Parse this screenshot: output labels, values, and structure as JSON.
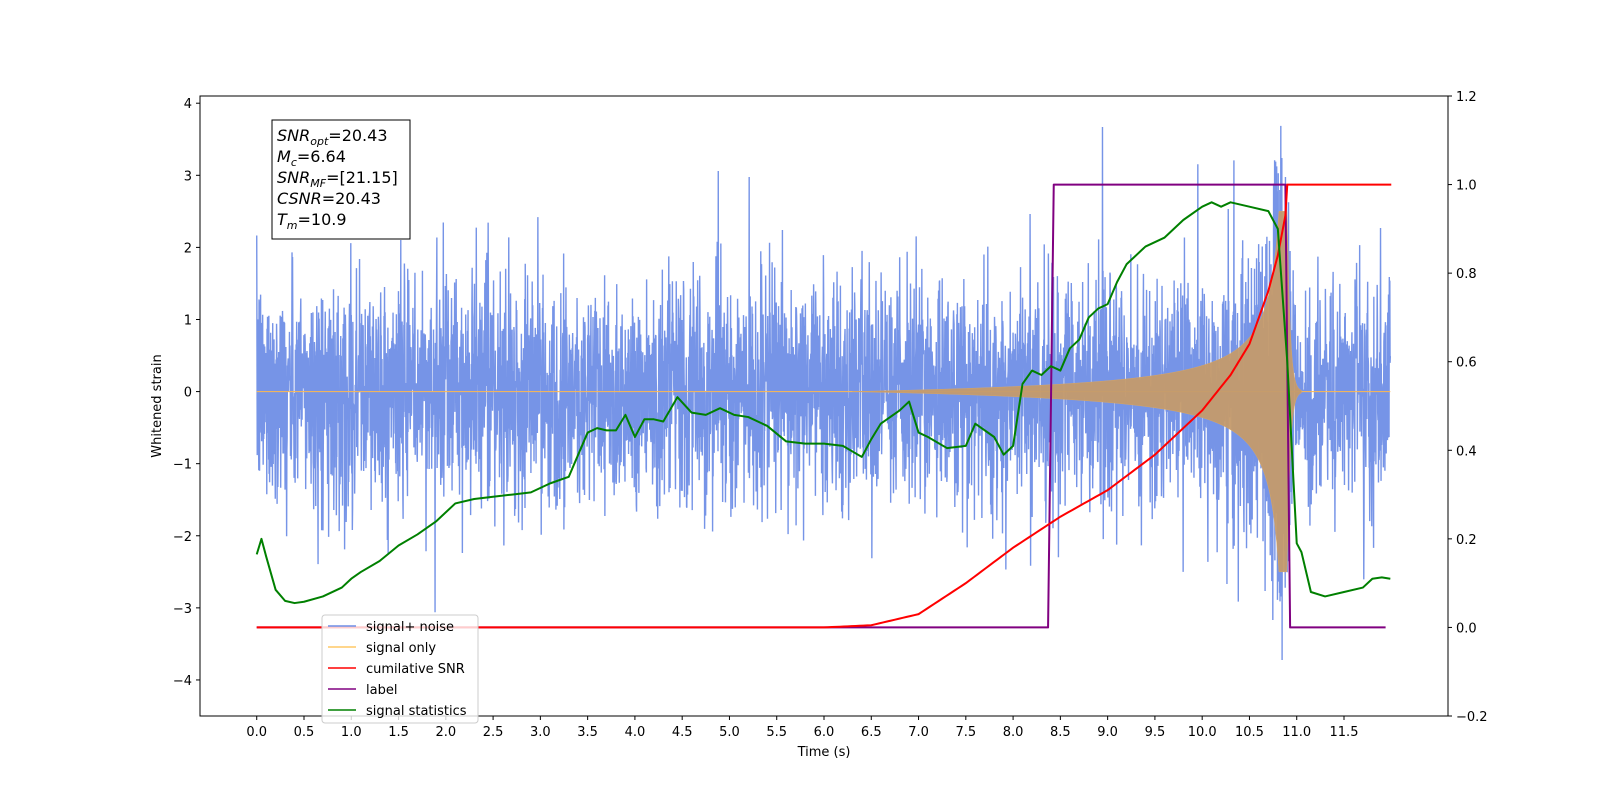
{
  "chart_data": {
    "type": "line",
    "xlabel": "Time (s)",
    "ylabel": "Whitened strain",
    "xlim": [
      -0.6,
      12.6
    ],
    "ylim": [
      -4.5,
      4.1
    ],
    "y2lim": [
      -0.2,
      1.2
    ],
    "x_ticks": [
      0.0,
      0.5,
      1.0,
      1.5,
      2.0,
      2.5,
      3.0,
      3.5,
      4.0,
      4.5,
      5.0,
      5.5,
      6.0,
      6.5,
      7.0,
      7.5,
      8.0,
      8.5,
      9.0,
      9.5,
      10.0,
      10.5,
      11.0,
      11.5
    ],
    "x_tick_labels": [
      "0.0",
      "0.5",
      "1.0",
      "1.5",
      "2.0",
      "2.5",
      "3.0",
      "3.5",
      "4.0",
      "4.5",
      "5.0",
      "5.5",
      "6.0",
      "6.5",
      "7.0",
      "7.5",
      "8.0",
      "8.5",
      "9.0",
      "9.5",
      "10.0",
      "10.5",
      "11.0",
      "11.5"
    ],
    "y_ticks": [
      4,
      3,
      2,
      1,
      0,
      -1,
      -2,
      -3,
      -4
    ],
    "y_tick_labels": [
      "4",
      "3",
      "2",
      "1",
      "0",
      "−1",
      "−2",
      "−3",
      "−4"
    ],
    "y2_ticks": [
      1.2,
      1.0,
      0.8,
      0.6,
      0.4,
      0.2,
      0.0,
      -0.2
    ],
    "y2_tick_labels": [
      "1.2",
      "1.0",
      "0.8",
      "0.6",
      "0.4",
      "0.2",
      "0.0",
      "−0.2"
    ],
    "grid": false,
    "legend_position": "lower-left",
    "info_box": [
      {
        "main": "SNR",
        "sub": "opt",
        "rest": "=20.43"
      },
      {
        "main": "M",
        "sub": "c",
        "rest": "=6.64"
      },
      {
        "main": "SNR",
        "sub": "MF",
        "rest": "=[21.15]"
      },
      {
        "main": "CSNR",
        "sub": "",
        "rest": "=20.43"
      },
      {
        "main": "T",
        "sub": "m",
        "rest": "=10.9"
      }
    ],
    "series": [
      {
        "name": "signal+ noise",
        "color": "#6f8ee6",
        "axis": "left",
        "description_points": {
          "x_range": [
            0.0,
            11.99
          ],
          "typical_amplitude": 1.3,
          "peak_max": 3.7,
          "peak_min": -4.1
        }
      },
      {
        "name": "signal only",
        "color": "#ffb84d",
        "axis": "left",
        "chirp": {
          "start": 6.3,
          "merger": 10.9,
          "peak_amplitude": 2.5,
          "ringdown_end": 11.05
        }
      },
      {
        "name": "cumilative SNR",
        "color": "#ff0000",
        "axis": "right",
        "x": [
          0.0,
          6.0,
          6.5,
          7.0,
          7.5,
          8.0,
          8.5,
          9.0,
          9.5,
          10.0,
          10.3,
          10.5,
          10.7,
          10.8,
          10.88,
          10.9,
          12.0
        ],
        "y": [
          0.0,
          0.0,
          0.005,
          0.03,
          0.1,
          0.18,
          0.25,
          0.31,
          0.39,
          0.49,
          0.57,
          0.64,
          0.76,
          0.84,
          0.93,
          1.0,
          1.0
        ]
      },
      {
        "name": "label",
        "color": "#800080",
        "axis": "right",
        "x": [
          0.0,
          8.37,
          8.43,
          10.88,
          10.93,
          11.94
        ],
        "y": [
          0.0,
          0.0,
          1.0,
          1.0,
          0.0,
          0.0
        ]
      },
      {
        "name": "signal statistics",
        "color": "#008000",
        "axis": "right",
        "x": [
          0.0,
          0.05,
          0.1,
          0.2,
          0.3,
          0.4,
          0.5,
          0.7,
          0.9,
          1.0,
          1.1,
          1.3,
          1.5,
          1.7,
          1.9,
          2.1,
          2.3,
          2.5,
          2.7,
          2.9,
          3.1,
          3.3,
          3.5,
          3.6,
          3.7,
          3.8,
          3.9,
          4.0,
          4.1,
          4.2,
          4.3,
          4.45,
          4.6,
          4.75,
          4.9,
          5.05,
          5.2,
          5.4,
          5.6,
          5.8,
          6.0,
          6.2,
          6.4,
          6.5,
          6.6,
          6.8,
          6.9,
          7.0,
          7.1,
          7.3,
          7.5,
          7.6,
          7.8,
          7.9,
          8.0,
          8.1,
          8.2,
          8.3,
          8.4,
          8.5,
          8.6,
          8.7,
          8.8,
          8.9,
          9.0,
          9.1,
          9.2,
          9.4,
          9.6,
          9.8,
          10.0,
          10.1,
          10.2,
          10.3,
          10.5,
          10.7,
          10.8,
          10.9,
          11.0,
          11.05,
          11.15,
          11.3,
          11.5,
          11.7,
          11.8,
          11.9,
          11.99
        ],
        "y": [
          0.165,
          0.2,
          0.16,
          0.085,
          0.06,
          0.055,
          0.058,
          0.07,
          0.09,
          0.11,
          0.125,
          0.15,
          0.185,
          0.21,
          0.24,
          0.28,
          0.29,
          0.295,
          0.3,
          0.305,
          0.325,
          0.34,
          0.44,
          0.45,
          0.445,
          0.445,
          0.48,
          0.43,
          0.47,
          0.47,
          0.465,
          0.52,
          0.485,
          0.48,
          0.495,
          0.48,
          0.475,
          0.455,
          0.42,
          0.415,
          0.415,
          0.41,
          0.385,
          0.425,
          0.46,
          0.49,
          0.51,
          0.44,
          0.43,
          0.405,
          0.41,
          0.46,
          0.43,
          0.39,
          0.41,
          0.55,
          0.58,
          0.57,
          0.59,
          0.58,
          0.63,
          0.65,
          0.7,
          0.72,
          0.73,
          0.78,
          0.82,
          0.86,
          0.88,
          0.92,
          0.95,
          0.96,
          0.95,
          0.96,
          0.95,
          0.94,
          0.9,
          0.6,
          0.19,
          0.17,
          0.08,
          0.07,
          0.08,
          0.09,
          0.11,
          0.113,
          0.11
        ]
      }
    ]
  }
}
